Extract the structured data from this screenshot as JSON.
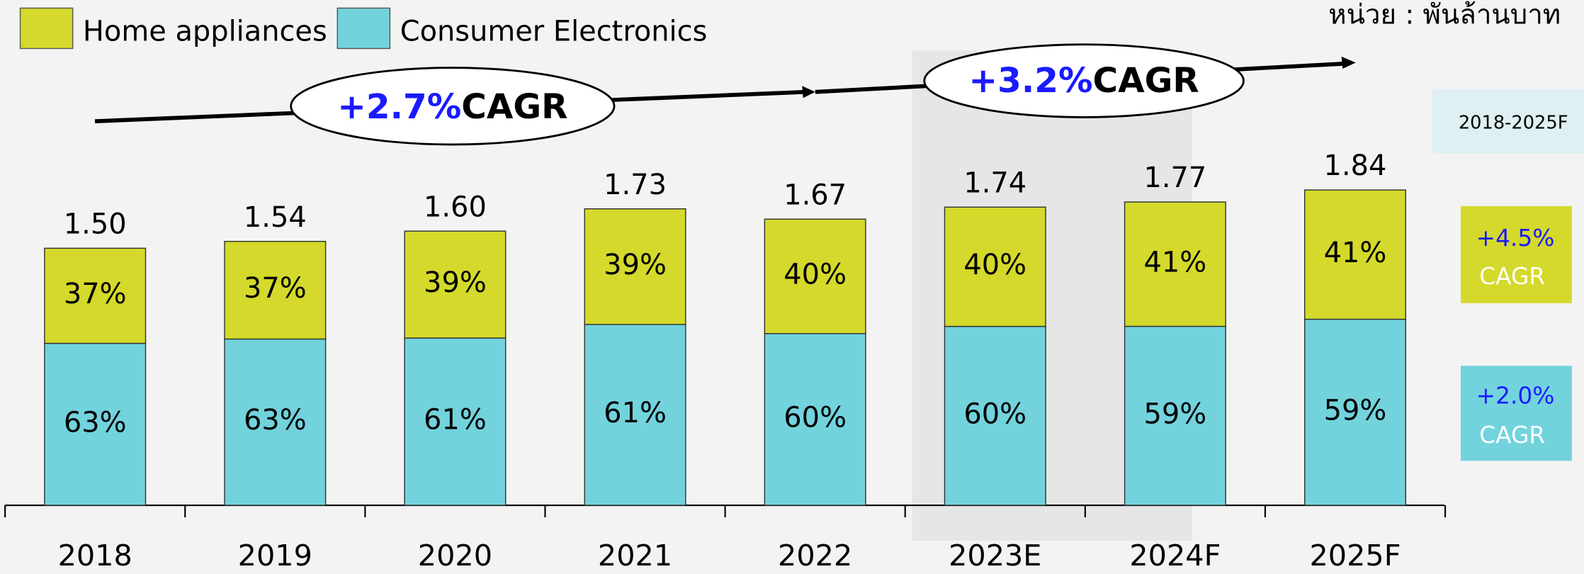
{
  "chart_data": {
    "type": "stacked_bar",
    "unit": "หน่วย : พันล้านบาท",
    "categories": [
      "2018",
      "2019",
      "2020",
      "2021",
      "2022",
      "2023E",
      "2024F",
      "2025F"
    ],
    "series": [
      {
        "name": "Home appliances",
        "color": "#d4d92b",
        "values": [
          37,
          37,
          39,
          39,
          40,
          40,
          41,
          41
        ],
        "value_labels": [
          "37%",
          "37%",
          "39%",
          "39%",
          "40%",
          "40%",
          "41%",
          "41%"
        ]
      },
      {
        "name": "Consumer Electronics",
        "color": "#72d3dd",
        "values": [
          63,
          63,
          61,
          61,
          60,
          60,
          59,
          59
        ],
        "value_labels": [
          "63%",
          "63%",
          "61%",
          "61%",
          "60%",
          "60%",
          "59%",
          "59%"
        ]
      }
    ],
    "totals": {
      "values": [
        1.5,
        1.54,
        1.6,
        1.73,
        1.67,
        1.74,
        1.77,
        1.84
      ],
      "value_labels": [
        "1.50",
        "1.54",
        "1.60",
        "1.73",
        "1.67",
        "1.74",
        "1.77",
        "1.84"
      ]
    },
    "annotations": [
      {
        "value": "+2.7%",
        "text": "CAGR"
      },
      {
        "value": "+3.2%",
        "text": "CAGR"
      }
    ],
    "side_notes": {
      "period": "2018-2025F",
      "home_appliances": {
        "value": "+4.5%",
        "text": "CAGR"
      },
      "consumer_electronics": {
        "value": "+2.0%",
        "text": "CAGR"
      }
    }
  }
}
